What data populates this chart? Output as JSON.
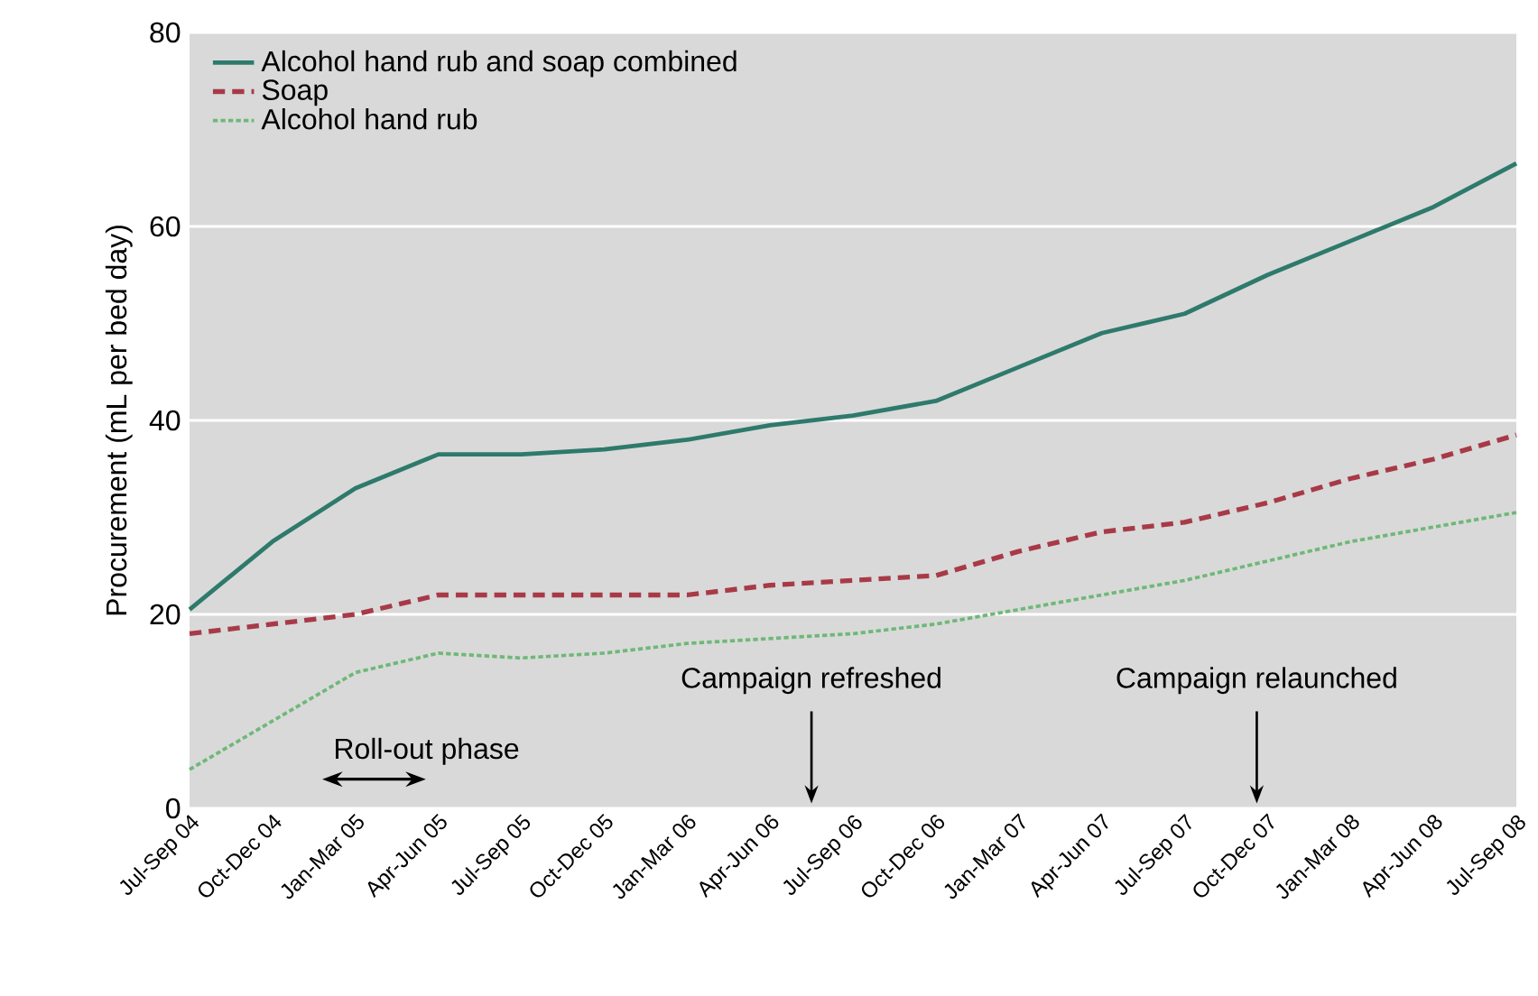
{
  "chart_data": {
    "type": "line",
    "ylabel": "Procurement (mL per bed day)",
    "categories": [
      "Jul-Sep 04",
      "Oct-Dec 04",
      "Jan-Mar 05",
      "Apr-Jun 05",
      "Jul-Sep 05",
      "Oct-Dec 05",
      "Jan-Mar 06",
      "Apr-Jun 06",
      "Jul-Sep 06",
      "Oct-Dec 06",
      "Jan-Mar 07",
      "Apr-Jun 07",
      "Jul-Sep 07",
      "Oct-Dec 07",
      "Jan-Mar 08",
      "Apr-Jun 08",
      "Jul-Sep 08"
    ],
    "series": [
      {
        "name": "Alcohol hand rub and soap combined",
        "color": "#2e7a6c",
        "line_style": "solid",
        "values": [
          20.5,
          27.5,
          33,
          36.5,
          36.5,
          37,
          38,
          39.5,
          40.5,
          42,
          45.5,
          49,
          51,
          55,
          58.5,
          62,
          66.5
        ]
      },
      {
        "name": "Soap",
        "color": "#a83a48",
        "line_style": "dashed",
        "values": [
          18,
          19,
          20,
          22,
          22,
          22,
          22,
          23,
          23.5,
          24,
          26.5,
          28.5,
          29.5,
          31.5,
          34,
          36,
          38.5
        ]
      },
      {
        "name": "Alcohol hand rub",
        "color": "#6fb878",
        "line_style": "dotted",
        "values": [
          4,
          9,
          14,
          16,
          15.5,
          16,
          17,
          17.5,
          18,
          19,
          20.5,
          22,
          23.5,
          25.5,
          27.5,
          29,
          30.5
        ]
      }
    ],
    "ylim": [
      0,
      80
    ],
    "yticks": [
      0,
      20,
      40,
      60,
      80
    ],
    "grid": "y",
    "legend": "top left",
    "annotations": [
      "Roll-out phase",
      "Campaign refreshed",
      "Campaign relaunched"
    ]
  }
}
